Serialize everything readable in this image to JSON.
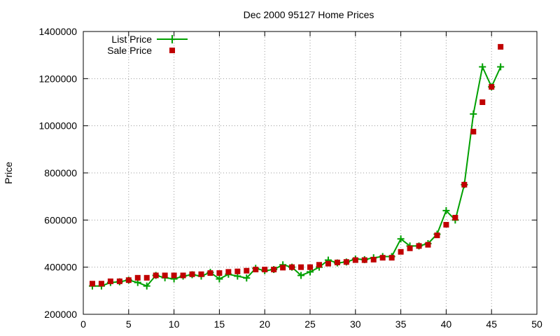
{
  "chart_data": {
    "type": "line",
    "title": "Dec 2000 95127 Home Prices",
    "xlabel": "",
    "ylabel": "Price",
    "xlim": [
      0,
      50
    ],
    "ylim": [
      200000,
      1400000
    ],
    "x_ticks": [
      0,
      5,
      10,
      15,
      20,
      25,
      30,
      35,
      40,
      45,
      50
    ],
    "y_ticks": [
      200000,
      400000,
      600000,
      800000,
      1000000,
      1200000,
      1400000
    ],
    "grid": true,
    "legend_position": "top-left",
    "series": [
      {
        "name": "List Price",
        "style": "line-with-plus-markers",
        "color": "#00a000",
        "x": [
          1,
          2,
          3,
          4,
          5,
          6,
          7,
          8,
          9,
          10,
          11,
          12,
          13,
          14,
          15,
          16,
          17,
          18,
          19,
          20,
          21,
          22,
          23,
          24,
          25,
          26,
          27,
          28,
          29,
          30,
          31,
          32,
          33,
          34,
          35,
          36,
          37,
          38,
          39,
          40,
          41,
          42,
          43,
          44,
          45,
          46
        ],
        "values": [
          320000,
          320000,
          335000,
          338000,
          345000,
          335000,
          320000,
          365000,
          355000,
          350000,
          362000,
          368000,
          362000,
          378000,
          350000,
          370000,
          362000,
          354000,
          395000,
          385000,
          390000,
          410000,
          400000,
          365000,
          380000,
          400000,
          430000,
          418000,
          422000,
          435000,
          432000,
          440000,
          445000,
          445000,
          520000,
          490000,
          490000,
          500000,
          540000,
          640000,
          600000,
          750000,
          1050000,
          1250000,
          1165000,
          1250000
        ]
      },
      {
        "name": "Sale Price",
        "style": "square-markers",
        "color": "#c00000",
        "x": [
          1,
          2,
          3,
          4,
          5,
          6,
          7,
          8,
          9,
          10,
          11,
          12,
          13,
          14,
          15,
          16,
          17,
          18,
          19,
          20,
          21,
          22,
          23,
          24,
          25,
          26,
          27,
          28,
          29,
          30,
          31,
          32,
          33,
          34,
          35,
          36,
          37,
          38,
          39,
          40,
          41,
          42,
          43,
          44,
          45,
          46
        ],
        "values": [
          330000,
          330000,
          340000,
          340000,
          345000,
          355000,
          355000,
          365000,
          365000,
          365000,
          365000,
          370000,
          370000,
          375000,
          375000,
          380000,
          382000,
          385000,
          390000,
          390000,
          390000,
          398000,
          400000,
          400000,
          400000,
          410000,
          415000,
          420000,
          422000,
          430000,
          430000,
          432000,
          440000,
          440000,
          465000,
          480000,
          490000,
          495000,
          535000,
          580000,
          610000,
          750000,
          975000,
          1100000,
          1165000,
          1335000
        ]
      }
    ]
  }
}
